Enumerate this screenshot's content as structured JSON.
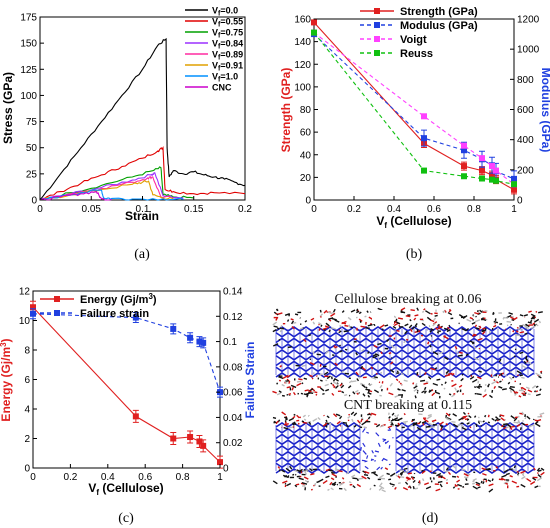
{
  "chart_data": [
    {
      "panel": "(a)",
      "type": "line",
      "xlabel": "Strain",
      "ylabel": "Stress (GPa)",
      "xlim": [
        0,
        0.2
      ],
      "ylim": [
        0,
        175
      ],
      "xticks": [
        "0",
        "0.05",
        "0.1",
        "0.15",
        "0.2"
      ],
      "yticks": [
        "0",
        "25",
        "50",
        "75",
        "100",
        "125",
        "150",
        "175"
      ],
      "legend_position": "top-right",
      "series": [
        {
          "name": "Vf=0.0",
          "color": "#000000",
          "x": [
            0,
            0.02,
            0.04,
            0.06,
            0.08,
            0.1,
            0.115,
            0.123,
            0.124,
            0.126,
            0.13,
            0.14,
            0.15,
            0.16,
            0.17,
            0.18,
            0.19,
            0.2
          ],
          "y": [
            0,
            25,
            50,
            75,
            100,
            125,
            148,
            154,
            50,
            22,
            28,
            25,
            27,
            24,
            22,
            20,
            17,
            14
          ]
        },
        {
          "name": "Vf=0.55",
          "color": "#e00000",
          "x": [
            0,
            0.02,
            0.04,
            0.06,
            0.08,
            0.1,
            0.115,
            0.12,
            0.122,
            0.13,
            0.15,
            0.17,
            0.2
          ],
          "y": [
            0,
            8,
            16,
            24,
            32,
            40,
            47,
            50,
            10,
            8,
            6,
            7,
            6
          ]
        },
        {
          "name": "Vf=0.75",
          "color": "#00a000",
          "x": [
            0,
            0.03,
            0.06,
            0.09,
            0.11,
            0.118,
            0.12,
            0.13,
            0.15
          ],
          "y": [
            0,
            7,
            14,
            22,
            28,
            31,
            5,
            3,
            2
          ]
        },
        {
          "name": "Vf=0.84",
          "color": "#9b30ff",
          "x": [
            0,
            0.03,
            0.06,
            0.09,
            0.108,
            0.112,
            0.12,
            0.14
          ],
          "y": [
            0,
            6,
            12,
            19,
            24,
            26,
            4,
            2
          ]
        },
        {
          "name": "Vf=0.89",
          "color": "#ff2ca0",
          "x": [
            0,
            0.03,
            0.06,
            0.09,
            0.105,
            0.11,
            0.118,
            0.13
          ],
          "y": [
            0,
            6,
            11,
            17,
            21,
            22,
            3,
            2
          ]
        },
        {
          "name": "Vf=0.91",
          "color": "#e0a000",
          "x": [
            0,
            0.03,
            0.06,
            0.09,
            0.1,
            0.106,
            0.11,
            0.12,
            0.13
          ],
          "y": [
            0,
            5,
            10,
            15,
            17,
            18,
            5,
            2,
            1
          ]
        },
        {
          "name": "Vf=1.0",
          "color": "#0090ff",
          "x": [
            0,
            0.02,
            0.04,
            0.06,
            0.062,
            0.07,
            0.09,
            0.12,
            0.14
          ],
          "y": [
            0,
            3.5,
            7,
            9.5,
            2,
            1.5,
            1,
            1,
            0.5
          ]
        },
        {
          "name": "CNC",
          "color": "#cc00cc",
          "x": [
            0,
            0.02,
            0.04,
            0.055,
            0.06,
            0.07
          ],
          "y": [
            0,
            3,
            6,
            8,
            1,
            0.5
          ]
        }
      ]
    },
    {
      "panel": "(b)",
      "type": "line",
      "xlabel": "Vf (Cellulose)",
      "ylabel_left": "Strength (GPa)",
      "ylabel_right": "Modulus (GPa)",
      "xlim": [
        0,
        1
      ],
      "ylim_left": [
        0,
        160
      ],
      "ylim_right": [
        0,
        1200
      ],
      "xticks": [
        "0",
        "0.2",
        "0.4",
        "0.6",
        "0.8",
        "1"
      ],
      "yticks_left": [
        "0",
        "20",
        "40",
        "60",
        "80",
        "100",
        "120",
        "140",
        "160"
      ],
      "yticks_right": [
        "0",
        "200",
        "400",
        "600",
        "800",
        "1000",
        "1200"
      ],
      "legend_position": "top-right",
      "series": [
        {
          "name": "Strength (GPa)",
          "color": "#e02020",
          "axis": "left",
          "style": "solid",
          "x": [
            0,
            0.55,
            0.75,
            0.84,
            0.89,
            0.91,
            1.0
          ],
          "y": [
            157,
            50,
            30,
            26,
            22,
            18,
            9
          ]
        },
        {
          "name": "Modulus (GPa)",
          "color": "#2040e0",
          "axis": "right",
          "style": "dashed",
          "x": [
            0,
            0.55,
            0.75,
            0.84,
            0.89,
            0.91,
            1.0
          ],
          "y": [
            1100,
            410,
            330,
            270,
            230,
            190,
            140
          ]
        },
        {
          "name": "Voigt",
          "color": "#ff40ff",
          "axis": "left",
          "style": "dashed",
          "x": [
            0,
            0.55,
            0.75,
            0.84,
            0.89,
            0.91,
            1.0
          ],
          "y": [
            148,
            74,
            48,
            37,
            30,
            26,
            14
          ]
        },
        {
          "name": "Reuss",
          "color": "#10c010",
          "axis": "left",
          "style": "dashed",
          "x": [
            0,
            0.55,
            0.75,
            0.84,
            0.89,
            0.91,
            1.0
          ],
          "y": [
            148,
            26,
            21,
            19,
            18,
            17,
            14
          ]
        }
      ]
    },
    {
      "panel": "(c)",
      "type": "line",
      "xlabel": "Vf (Cellulose)",
      "ylabel_left": "Energy (Gj/m3)",
      "ylabel_right": "Failure Strain",
      "xlim": [
        0,
        1
      ],
      "ylim_left": [
        0,
        12
      ],
      "ylim_right": [
        0,
        0.14
      ],
      "xticks": [
        "0",
        "0.2",
        "0.4",
        "0.6",
        "0.8",
        "1"
      ],
      "yticks_left": [
        "0",
        "2",
        "4",
        "6",
        "8",
        "10",
        "12"
      ],
      "yticks_right": [
        "0",
        "0.02",
        "0.04",
        "0.06",
        "0.08",
        "0.1",
        "0.12",
        "0.14"
      ],
      "legend_position": "top-left",
      "series": [
        {
          "name": "Energy (Gj/m3)",
          "color": "#e02020",
          "axis": "left",
          "style": "solid",
          "x": [
            0,
            0.55,
            0.75,
            0.84,
            0.89,
            0.91,
            1.0
          ],
          "y": [
            10.9,
            3.5,
            2.0,
            2.1,
            1.8,
            1.5,
            0.4
          ]
        },
        {
          "name": "Failure strain",
          "color": "#2040e0",
          "axis": "right",
          "style": "dashed",
          "x": [
            0,
            0.55,
            0.75,
            0.84,
            0.89,
            0.91,
            1.0
          ],
          "y": [
            0.122,
            0.119,
            0.11,
            0.103,
            0.1,
            0.099,
            0.06
          ]
        }
      ]
    }
  ],
  "panel_labels": {
    "a": "(a)",
    "b": "(b)",
    "c": "(c)",
    "d": "(d)"
  },
  "panel_d": {
    "title_top": "Cellulose breaking at 0.06",
    "title_bottom": "CNT breaking at 0.115"
  },
  "legend_text": {
    "a": [
      {
        "base": "V",
        "sub": "f",
        "rest": "=0.0"
      },
      {
        "base": "V",
        "sub": "f",
        "rest": "=0.55"
      },
      {
        "base": "V",
        "sub": "f",
        "rest": "=0.75"
      },
      {
        "base": "V",
        "sub": "f",
        "rest": "=0.84"
      },
      {
        "base": "V",
        "sub": "f",
        "rest": "=0.89"
      },
      {
        "base": "V",
        "sub": "f",
        "rest": "=0.91"
      },
      {
        "base": "V",
        "sub": "f",
        "rest": "=1.0"
      },
      {
        "base": "CNC",
        "sub": "",
        "rest": ""
      }
    ],
    "b": [
      "Strength (GPa)",
      "Modulus (GPa)",
      "Voigt",
      "Reuss"
    ],
    "c": [
      {
        "base": "Energy (Gj/m",
        "sup": "3",
        "rest": ")"
      },
      {
        "base": "Failure strain",
        "sup": "",
        "rest": ""
      }
    ]
  },
  "axis_text": {
    "vf_base": "V",
    "vf_sub": "f",
    "vf_rest": " (Cellulose)",
    "energy_base": "Energy (Gj/m",
    "energy_sup": "3",
    "energy_rest": ")"
  }
}
